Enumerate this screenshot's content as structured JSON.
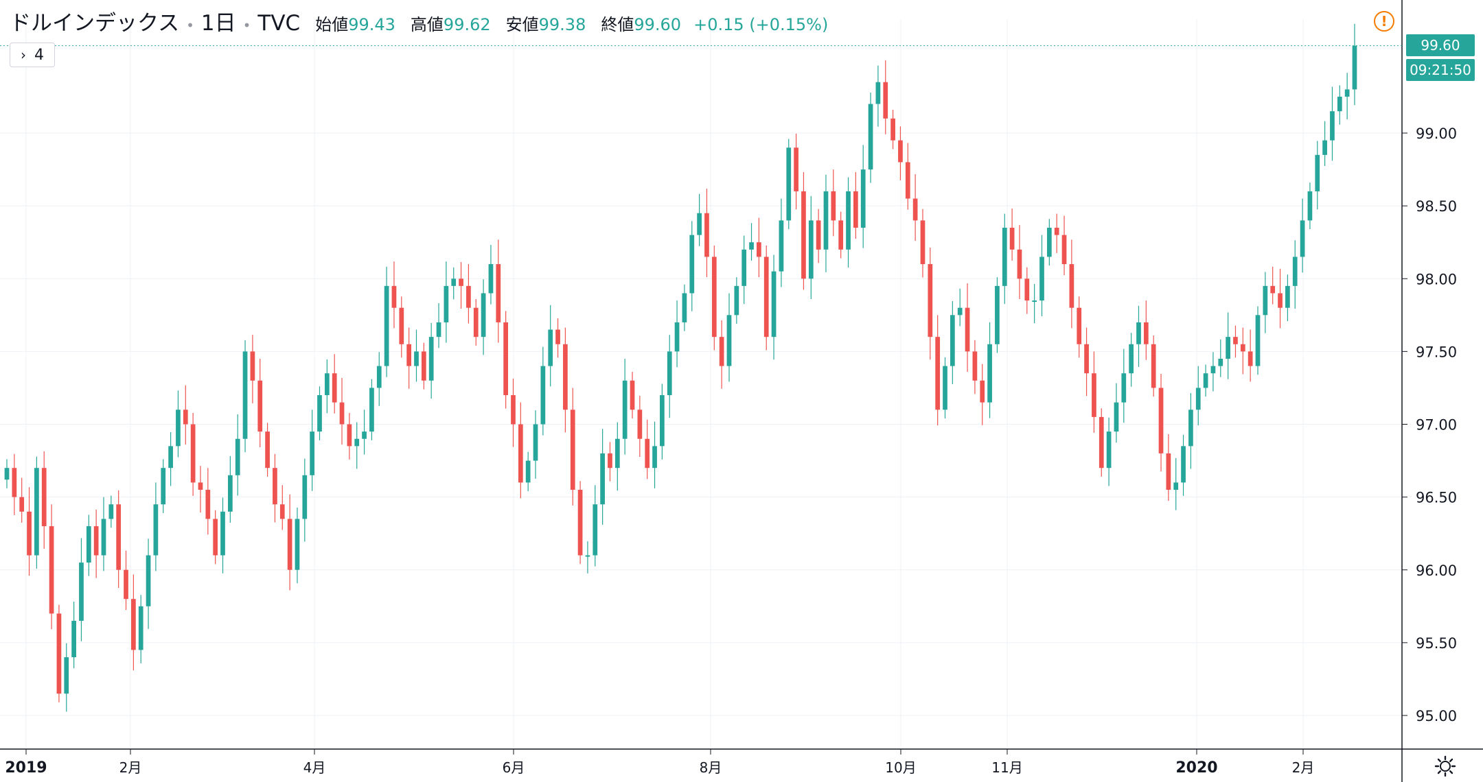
{
  "header": {
    "symbol": "ドルインデックス",
    "interval": "1日",
    "source": "TVC",
    "open_label": "始値",
    "open_value": "99.43",
    "high_label": "高値",
    "high_value": "99.62",
    "low_label": "安値",
    "low_value": "99.38",
    "close_label": "終値",
    "close_value": "99.60",
    "change": "+0.15 (+0.15%)",
    "separator": "•"
  },
  "collapse_button": {
    "icon": "chevron-right-icon",
    "glyph": "›",
    "count": "4"
  },
  "alert": {
    "icon": "alert-icon",
    "glyph": "!"
  },
  "price_scale": {
    "last_price_label": "99.60",
    "countdown_label": "09:21:50",
    "settings_icon": "gear-icon"
  },
  "colors": {
    "up": "#26a69a",
    "down": "#ef5350",
    "grid": "#eef1f6",
    "axis": "#131722",
    "text": "#131722"
  },
  "chart_data": {
    "type": "candlestick",
    "title": "ドルインデックス · 1日 · TVC",
    "x_axis_labels": [
      "2019",
      "2月",
      "4月",
      "6月",
      "8月",
      "10月",
      "11月",
      "2020",
      "2月"
    ],
    "x_axis_label_dates": [
      "2019-01-01",
      "2019-02-01",
      "2019-04-01",
      "2019-06-01",
      "2019-08-01",
      "2019-10-01",
      "2019-11-01",
      "2020-01-01",
      "2020-02-01"
    ],
    "y_ticks": [
      "95.00",
      "95.50",
      "96.00",
      "96.50",
      "97.00",
      "97.50",
      "98.00",
      "98.50",
      "99.00"
    ],
    "y_tick_values": [
      95.0,
      95.5,
      96.0,
      96.5,
      97.0,
      97.5,
      98.0,
      98.5,
      99.0
    ],
    "ylim": [
      94.8,
      99.7
    ],
    "last_price": 99.6,
    "grid": true,
    "up_color": "#26a69a",
    "down_color": "#ef5350",
    "closes": [
      96.7,
      96.5,
      96.4,
      96.1,
      96.7,
      96.3,
      95.7,
      95.15,
      95.4,
      95.65,
      96.05,
      96.3,
      96.1,
      96.35,
      96.45,
      96.0,
      95.8,
      95.45,
      95.75,
      96.1,
      96.45,
      96.7,
      96.85,
      97.1,
      97.0,
      96.6,
      96.55,
      96.35,
      96.1,
      96.4,
      96.65,
      96.9,
      97.5,
      97.3,
      96.95,
      96.7,
      96.45,
      96.35,
      96.0,
      96.35,
      96.65,
      96.95,
      97.2,
      97.35,
      97.15,
      97.0,
      96.85,
      96.9,
      96.95,
      97.25,
      97.4,
      97.95,
      97.8,
      97.55,
      97.4,
      97.5,
      97.3,
      97.6,
      97.7,
      97.95,
      98.0,
      97.95,
      97.8,
      97.6,
      97.9,
      98.1,
      97.7,
      97.2,
      97.0,
      96.6,
      96.75,
      97.0,
      97.4,
      97.65,
      97.55,
      97.1,
      96.55,
      96.1,
      96.1,
      96.45,
      96.8,
      96.7,
      96.9,
      97.3,
      97.1,
      96.9,
      96.7,
      96.85,
      97.2,
      97.5,
      97.7,
      97.9,
      98.3,
      98.45,
      98.15,
      97.6,
      97.4,
      97.75,
      97.95,
      98.2,
      98.25,
      98.15,
      97.6,
      98.05,
      98.4,
      98.9,
      98.6,
      98.0,
      98.4,
      98.2,
      98.6,
      98.4,
      98.2,
      98.6,
      98.35,
      98.75,
      99.2,
      99.35,
      99.1,
      98.95,
      98.8,
      98.55,
      98.4,
      98.1,
      97.6,
      97.1,
      97.4,
      97.75,
      97.8,
      97.5,
      97.3,
      97.15,
      97.55,
      97.95,
      98.35,
      98.2,
      98.0,
      97.85,
      97.85,
      98.15,
      98.35,
      98.3,
      98.1,
      97.8,
      97.55,
      97.35,
      97.05,
      96.7,
      96.95,
      97.15,
      97.35,
      97.55,
      97.7,
      97.55,
      97.25,
      96.8,
      96.55,
      96.6,
      96.85,
      97.1,
      97.25,
      97.35,
      97.4,
      97.45,
      97.6,
      97.55,
      97.5,
      97.4,
      97.75,
      97.95,
      97.9,
      97.8,
      97.95,
      98.15,
      98.4,
      98.6,
      98.85,
      98.95,
      99.15,
      99.25,
      99.3,
      99.6
    ]
  }
}
